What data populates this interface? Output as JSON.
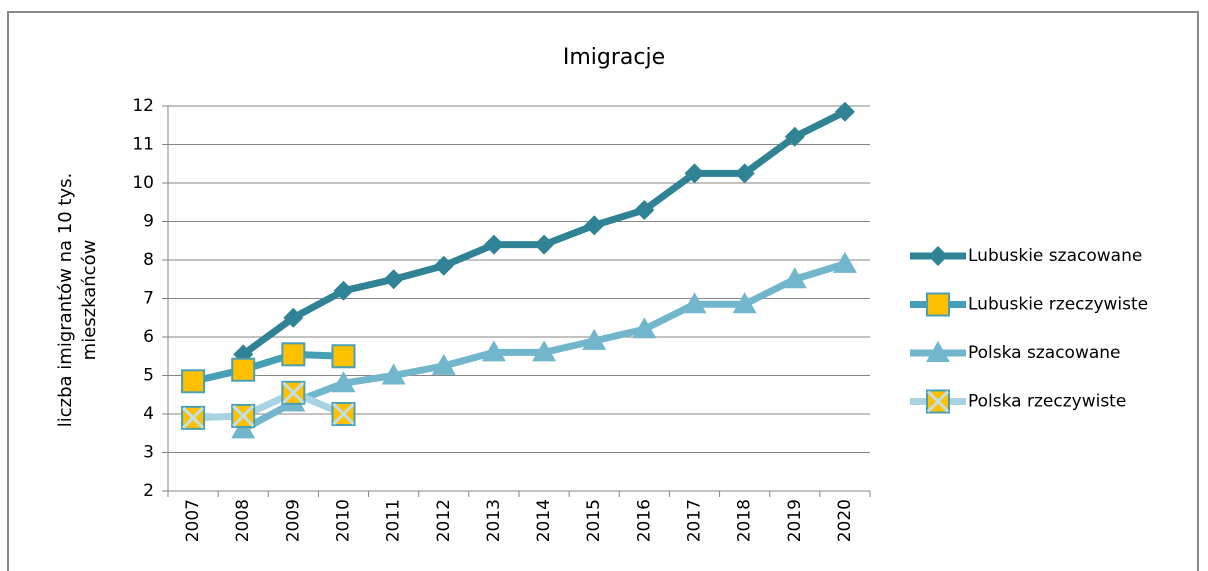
{
  "chart_data": {
    "type": "line",
    "title": "Imigracje",
    "ylabel": [
      "liczba imigrantów na 10 tys.",
      "mieszkańców"
    ],
    "categories": [
      "2007",
      "2008",
      "2009",
      "2010",
      "2011",
      "2012",
      "2013",
      "2014",
      "2015",
      "2016",
      "2017",
      "2018",
      "2019",
      "2020"
    ],
    "ylim": [
      2,
      12
    ],
    "yticks": [
      2,
      3,
      4,
      5,
      6,
      7,
      8,
      9,
      10,
      11,
      12
    ],
    "grid": true,
    "legend": "right",
    "series": [
      {
        "name": "Lubuskie szacowane",
        "color": "#2f8394",
        "marker": "diamond",
        "marker_color": "#2f8394",
        "values": [
          null,
          5.55,
          6.5,
          7.2,
          7.5,
          7.85,
          8.4,
          8.4,
          8.9,
          9.3,
          10.25,
          10.25,
          11.2,
          11.85
        ]
      },
      {
        "name": "Lubuskie rzeczywiste",
        "color": "#46a0b5",
        "marker": "square",
        "marker_color": "#ffc000",
        "values": [
          4.85,
          5.15,
          5.55,
          5.5,
          null,
          null,
          null,
          null,
          null,
          null,
          null,
          null,
          null,
          null
        ]
      },
      {
        "name": "Polska szacowane",
        "color": "#72b6cb",
        "marker": "triangle",
        "marker_color": "#72b6cb",
        "values": [
          null,
          3.6,
          4.3,
          4.8,
          5.0,
          5.25,
          5.6,
          5.6,
          5.9,
          6.2,
          6.85,
          6.85,
          7.5,
          7.9
        ]
      },
      {
        "name": "Polska rzeczywiste",
        "color": "#a9d2e2",
        "marker": "square-x",
        "marker_color": "#ffc000",
        "values": [
          3.9,
          3.95,
          4.55,
          4.0,
          null,
          null,
          null,
          null,
          null,
          null,
          null,
          null,
          null,
          null
        ]
      }
    ]
  }
}
